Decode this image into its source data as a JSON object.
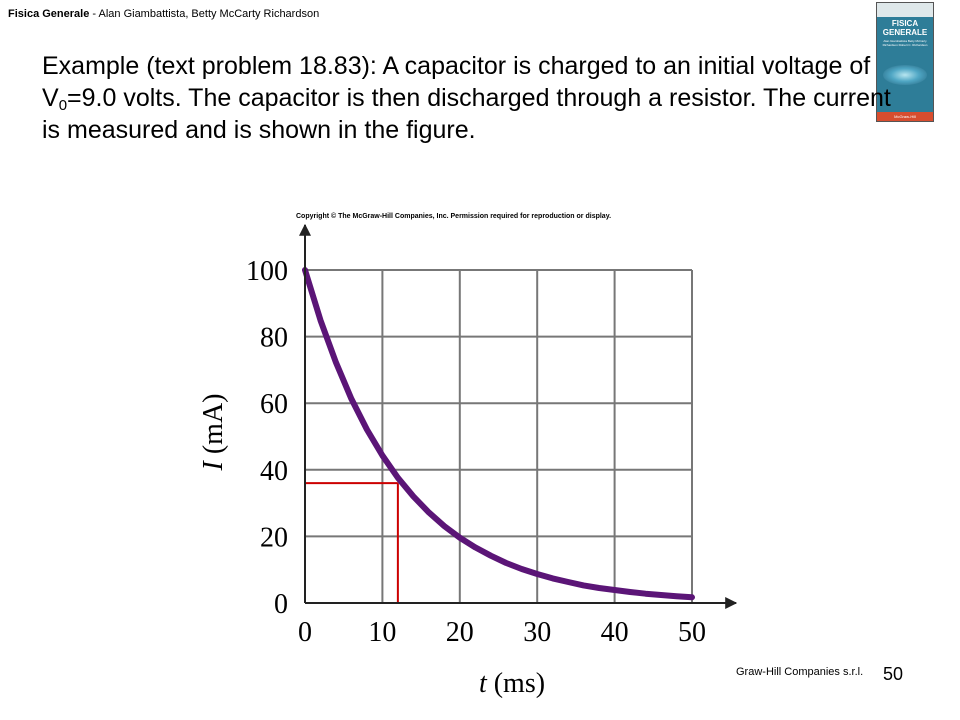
{
  "header": {
    "book_title": "Fisica Generale",
    "authors": " - Alan Giambattista, Betty McCarty Richardson"
  },
  "cover": {
    "title_line1": "FISICA",
    "title_line2": "GENERALE",
    "subtitle": "Alan Giambattista Betty McCarty Richardson Robert C. Richardson",
    "publisher": "McGraw-Hill"
  },
  "problem": {
    "part1": "Example (text problem 18.83): A capacitor is charged to an initial voltage of V",
    "subscript": "0",
    "part2": "=9.0 volts.  The capacitor is then discharged through a resistor.  The current is measured and is shown in the figure."
  },
  "copyright": "Copyright © The McGraw-Hill Companies, Inc. Permission required for reproduction or display.",
  "footer_note": "Graw-Hill Companies s.r.l.",
  "page_number": "50",
  "colors": {
    "curve": "#5b1577",
    "guide": "#cc0000",
    "grid": "#777777",
    "axis": "#222222"
  },
  "chart_data": {
    "type": "line",
    "xlabel_var": "t",
    "xlabel_unit": " (ms)",
    "ylabel_var": "I",
    "ylabel_unit": " (mA)",
    "xlim": [
      0,
      50
    ],
    "ylim": [
      0,
      100
    ],
    "x_ticks": [
      0,
      10,
      20,
      30,
      40,
      50
    ],
    "y_ticks": [
      0,
      20,
      40,
      60,
      80,
      100
    ],
    "grid": true,
    "series": [
      {
        "x": [
          0,
          2,
          4,
          6,
          8,
          10,
          12,
          14,
          16,
          18,
          20,
          22,
          24,
          26,
          28,
          30,
          32,
          34,
          36,
          38,
          40,
          42,
          44,
          46,
          48,
          50
        ],
        "y": [
          100,
          84.9,
          72.2,
          61.3,
          52.1,
          44.3,
          37.6,
          32.0,
          27.2,
          23.1,
          19.6,
          16.7,
          14.2,
          12.0,
          10.2,
          8.7,
          7.4,
          6.3,
          5.3,
          4.5,
          3.9,
          3.3,
          2.8,
          2.4,
          2.0,
          1.7
        ]
      }
    ],
    "annotation": {
      "x": 12,
      "y": 36
    }
  }
}
